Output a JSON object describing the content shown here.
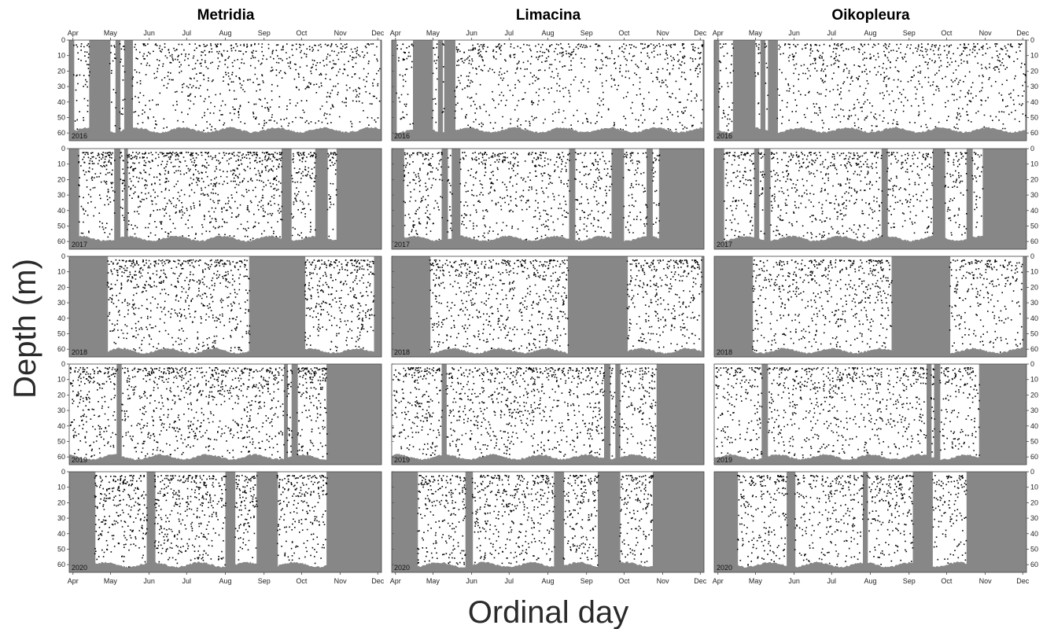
{
  "title": "",
  "xlabel": "Ordinal day",
  "ylabel": "Depth (m)",
  "colors": {
    "background": "#878787",
    "detection": "#000000",
    "sampled": "#ffffff"
  },
  "chart_data": {
    "type": "scatter",
    "description_units": "x = date (ordinal day), y = depth (m), points = individual detections",
    "columns": [
      "Metridia",
      "Limacina",
      "Oikopleura"
    ],
    "years": [
      "2016",
      "2017",
      "2018",
      "2019",
      "2020"
    ],
    "x_ticks": [
      "Apr",
      "May",
      "Jun",
      "Jul",
      "Aug",
      "Sep",
      "Oct",
      "Nov",
      "Dec"
    ],
    "x_tick_days": [
      91,
      121,
      152,
      182,
      213,
      244,
      274,
      305,
      335
    ],
    "xlim": [
      88,
      338
    ],
    "ylim": [
      0,
      65
    ],
    "y_ticks": [
      0,
      10,
      20,
      30,
      40,
      50,
      60
    ],
    "y_inverted": true,
    "grid": false,
    "legend": "none",
    "panels": [
      {
        "column": "Metridia",
        "year": "2016",
        "gaps": [
          [
            88,
            91
          ],
          [
            104,
            120
          ],
          [
            125,
            128
          ],
          [
            132,
            138
          ],
          [
            337,
            338
          ]
        ],
        "bottom_m": 58,
        "density": 0.35
      },
      {
        "column": "Metridia",
        "year": "2017",
        "gaps": [
          [
            88,
            95
          ],
          [
            124,
            128
          ],
          [
            132,
            134
          ],
          [
            258,
            265
          ],
          [
            285,
            294
          ],
          [
            302,
            338
          ]
        ],
        "bottom_m": 58,
        "density": 0.55
      },
      {
        "column": "Metridia",
        "year": "2018",
        "gaps": [
          [
            88,
            118
          ],
          [
            232,
            276
          ],
          [
            332,
            338
          ]
        ],
        "bottom_m": 61,
        "density": 0.55
      },
      {
        "column": "Metridia",
        "year": "2019",
        "gaps": [
          [
            126,
            129
          ],
          [
            260,
            262
          ],
          [
            266,
            270
          ],
          [
            294,
            338
          ]
        ],
        "bottom_m": 60,
        "density": 0.55
      },
      {
        "column": "Metridia",
        "year": "2020",
        "gaps": [
          [
            88,
            108
          ],
          [
            150,
            156
          ],
          [
            213,
            220
          ],
          [
            238,
            254
          ],
          [
            294,
            338
          ]
        ],
        "bottom_m": 60,
        "density": 0.6
      },
      {
        "column": "Limacina",
        "year": "2016",
        "gaps": [
          [
            88,
            91
          ],
          [
            105,
            120
          ],
          [
            125,
            128
          ],
          [
            130,
            138
          ],
          [
            337,
            338
          ]
        ],
        "bottom_m": 58,
        "density": 0.35
      },
      {
        "column": "Limacina",
        "year": "2017",
        "gaps": [
          [
            88,
            97
          ],
          [
            128,
            132
          ],
          [
            136,
            142
          ],
          [
            230,
            234
          ],
          [
            264,
            273
          ],
          [
            292,
            296
          ],
          [
            302,
            338
          ]
        ],
        "bottom_m": 58,
        "density": 0.45
      },
      {
        "column": "Limacina",
        "year": "2018",
        "gaps": [
          [
            88,
            118
          ],
          [
            229,
            276
          ],
          [
            336,
            338
          ]
        ],
        "bottom_m": 61,
        "density": 0.5
      },
      {
        "column": "Limacina",
        "year": "2019",
        "gaps": [
          [
            128,
            131
          ],
          [
            258,
            262
          ],
          [
            267,
            270
          ],
          [
            300,
            338
          ]
        ],
        "bottom_m": 60,
        "density": 0.5
      },
      {
        "column": "Limacina",
        "year": "2020",
        "gaps": [
          [
            88,
            108
          ],
          [
            147,
            152
          ],
          [
            218,
            225
          ],
          [
            253,
            270
          ],
          [
            297,
            338
          ]
        ],
        "bottom_m": 60,
        "density": 0.55
      },
      {
        "column": "Oikopleura",
        "year": "2016",
        "gaps": [
          [
            88,
            91
          ],
          [
            103,
            120
          ],
          [
            125,
            128
          ],
          [
            131,
            138
          ],
          [
            337,
            338
          ]
        ],
        "bottom_m": 58,
        "density": 0.35
      },
      {
        "column": "Oikopleura",
        "year": "2017",
        "gaps": [
          [
            88,
            95
          ],
          [
            120,
            123
          ],
          [
            128,
            132
          ],
          [
            222,
            226
          ],
          [
            263,
            272
          ],
          [
            290,
            294
          ],
          [
            303,
            338
          ]
        ],
        "bottom_m": 58,
        "density": 0.45
      },
      {
        "column": "Oikopleura",
        "year": "2018",
        "gaps": [
          [
            88,
            118
          ],
          [
            230,
            276
          ],
          [
            335,
            338
          ]
        ],
        "bottom_m": 61,
        "density": 0.45
      },
      {
        "column": "Oikopleura",
        "year": "2019",
        "gaps": [
          [
            126,
            130
          ],
          [
            258,
            261
          ],
          [
            264,
            268
          ],
          [
            300,
            338
          ]
        ],
        "bottom_m": 60,
        "density": 0.45
      },
      {
        "column": "Oikopleura",
        "year": "2020",
        "gaps": [
          [
            88,
            106
          ],
          [
            146,
            152
          ],
          [
            207,
            210
          ],
          [
            247,
            262
          ],
          [
            290,
            338
          ]
        ],
        "bottom_m": 60,
        "density": 0.45
      }
    ]
  }
}
